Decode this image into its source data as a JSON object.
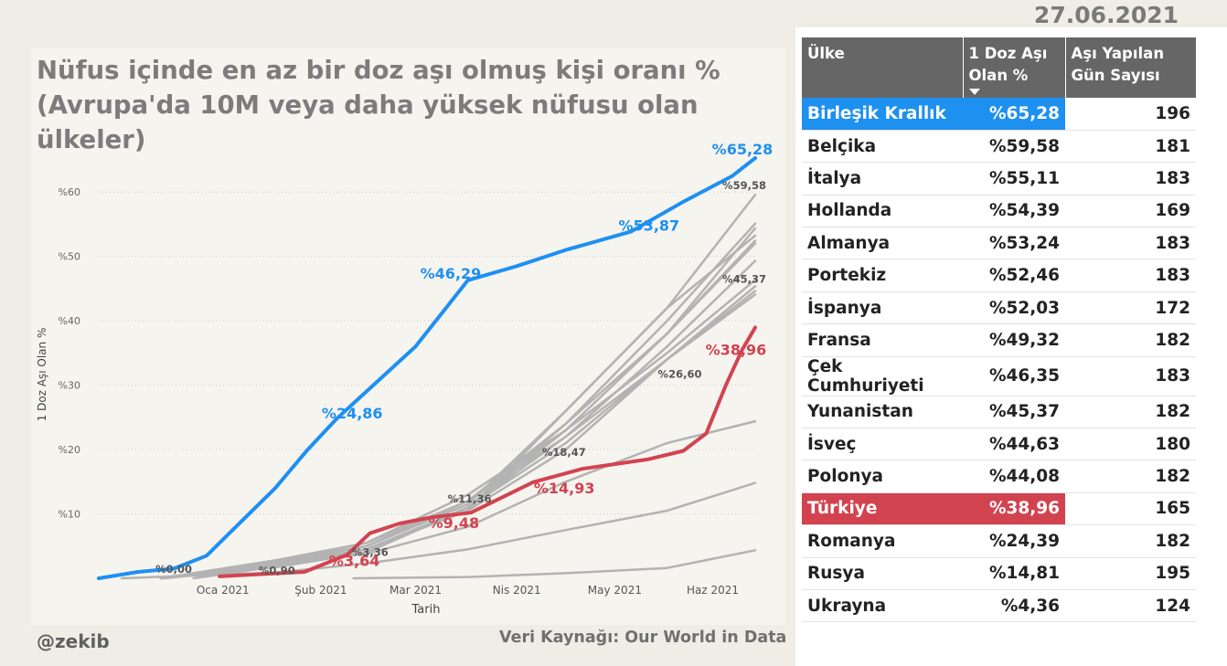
{
  "date": "27.06.2021",
  "title": "Nüfus içinde en az bir doz aşı olmuş kişi oranı % (Avrupa'da 10M veya daha yüksek nüfusu olan ülkeler)",
  "author": "@zekib",
  "source": "Veri Kaynağı: Our World in Data",
  "colors": {
    "highlight_blue": "#1e90f0",
    "highlight_red": "#d24350",
    "others_gray": "#b3b3b3",
    "header_bg": "#666666"
  },
  "chart_data": {
    "type": "line",
    "xlabel": "Tarih",
    "ylabel": "1 Doz Aşı Olan %",
    "x_ticks": [
      "Oca 2021",
      "Şub 2021",
      "Mar 2021",
      "Nis 2021",
      "May 2021",
      "Haz 2021"
    ],
    "y_ticks": [
      "%10",
      "%20",
      "%30",
      "%40",
      "%50",
      "%60"
    ],
    "ylim": [
      0,
      65
    ],
    "x_range": [
      "2020-12-08",
      "2021-06-27"
    ],
    "grid": "horizontal-dotted",
    "series": [
      {
        "name": "Birleşik Krallık",
        "color": "#1e90f0",
        "highlight": true,
        "points": [
          [
            "2020-12-08",
            0
          ],
          [
            "2020-12-20",
            1
          ],
          [
            "2020-12-31",
            1.5
          ],
          [
            "2021-01-10",
            3.5
          ],
          [
            "2021-01-20",
            8.5
          ],
          [
            "2021-01-31",
            14
          ],
          [
            "2021-02-10",
            20
          ],
          [
            "2021-02-19",
            24.86
          ],
          [
            "2021-03-01",
            29.5
          ],
          [
            "2021-03-15",
            36
          ],
          [
            "2021-03-31",
            46.29
          ],
          [
            "2021-04-15",
            48.5
          ],
          [
            "2021-04-30",
            51
          ],
          [
            "2021-05-20",
            53.87
          ],
          [
            "2021-06-05",
            58.5
          ],
          [
            "2021-06-20",
            62.5
          ],
          [
            "2021-06-27",
            65.28
          ]
        ]
      },
      {
        "name": "Türkiye",
        "color": "#d24350",
        "highlight": true,
        "points": [
          [
            "2021-01-14",
            0.3
          ],
          [
            "2021-02-09",
            1
          ],
          [
            "2021-02-22",
            3.64
          ],
          [
            "2021-03-01",
            7
          ],
          [
            "2021-03-10",
            8.5
          ],
          [
            "2021-03-20",
            9.48
          ],
          [
            "2021-04-01",
            10.2
          ],
          [
            "2021-04-20",
            14.93
          ],
          [
            "2021-05-05",
            17
          ],
          [
            "2021-05-25",
            18.47
          ],
          [
            "2021-06-05",
            19.8
          ],
          [
            "2021-06-12",
            22.5
          ],
          [
            "2021-06-18",
            30
          ],
          [
            "2021-06-23",
            35.5
          ],
          [
            "2021-06-27",
            38.96
          ]
        ]
      },
      {
        "name": "Belçika",
        "color": "#b3b3b3",
        "points": [
          [
            "2020-12-28",
            0
          ],
          [
            "2021-01-31",
            1.7
          ],
          [
            "2021-02-28",
            4.5
          ],
          [
            "2021-03-31",
            10.5
          ],
          [
            "2021-04-30",
            26
          ],
          [
            "2021-05-31",
            42
          ],
          [
            "2021-06-27",
            59.58
          ]
        ]
      },
      {
        "name": "İtalya",
        "color": "#b3b3b3",
        "points": [
          [
            "2020-12-27",
            0
          ],
          [
            "2021-01-31",
            2.5
          ],
          [
            "2021-02-28",
            5
          ],
          [
            "2021-03-31",
            12
          ],
          [
            "2021-04-30",
            24
          ],
          [
            "2021-05-31",
            40
          ],
          [
            "2021-06-27",
            55.11
          ]
        ]
      },
      {
        "name": "Hollanda",
        "color": "#b3b3b3",
        "points": [
          [
            "2021-01-06",
            0
          ],
          [
            "2021-01-31",
            1.8
          ],
          [
            "2021-02-28",
            4.5
          ],
          [
            "2021-03-31",
            11
          ],
          [
            "2021-04-30",
            24
          ],
          [
            "2021-05-31",
            38
          ],
          [
            "2021-06-27",
            54.39
          ]
        ]
      },
      {
        "name": "Almanya",
        "color": "#b3b3b3",
        "points": [
          [
            "2020-12-27",
            0
          ],
          [
            "2021-01-31",
            2.2
          ],
          [
            "2021-02-28",
            5
          ],
          [
            "2021-03-31",
            11.5
          ],
          [
            "2021-04-30",
            26
          ],
          [
            "2021-05-31",
            42
          ],
          [
            "2021-06-27",
            53.24
          ]
        ]
      },
      {
        "name": "Portekiz",
        "color": "#b3b3b3",
        "points": [
          [
            "2020-12-27",
            0
          ],
          [
            "2021-01-31",
            2.5
          ],
          [
            "2021-02-28",
            5.5
          ],
          [
            "2021-03-31",
            13
          ],
          [
            "2021-04-30",
            23
          ],
          [
            "2021-05-31",
            38
          ],
          [
            "2021-06-27",
            52.46
          ]
        ]
      },
      {
        "name": "İspanya",
        "color": "#b3b3b3",
        "points": [
          [
            "2020-12-27",
            0
          ],
          [
            "2021-01-31",
            2.8
          ],
          [
            "2021-02-28",
            5.5
          ],
          [
            "2021-03-31",
            12
          ],
          [
            "2021-04-30",
            23
          ],
          [
            "2021-05-31",
            38
          ],
          [
            "2021-06-27",
            52.03
          ]
        ]
      },
      {
        "name": "Fransa",
        "color": "#b3b3b3",
        "points": [
          [
            "2020-12-27",
            0
          ],
          [
            "2021-01-31",
            2.3
          ],
          [
            "2021-02-28",
            5
          ],
          [
            "2021-03-31",
            12
          ],
          [
            "2021-04-30",
            22
          ],
          [
            "2021-05-31",
            36
          ],
          [
            "2021-06-27",
            49.32
          ]
        ]
      },
      {
        "name": "Çek Cumhuriyeti",
        "color": "#b3b3b3",
        "points": [
          [
            "2020-12-27",
            0
          ],
          [
            "2021-01-31",
            1.9
          ],
          [
            "2021-02-28",
            4
          ],
          [
            "2021-03-31",
            11
          ],
          [
            "2021-04-30",
            23
          ],
          [
            "2021-05-31",
            35
          ],
          [
            "2021-06-27",
            46.35
          ]
        ]
      },
      {
        "name": "Yunanistan",
        "color": "#b3b3b3",
        "points": [
          [
            "2020-12-27",
            0
          ],
          [
            "2021-01-31",
            1.9
          ],
          [
            "2021-02-28",
            4.5
          ],
          [
            "2021-03-31",
            10.5
          ],
          [
            "2021-04-30",
            20
          ],
          [
            "2021-05-31",
            34
          ],
          [
            "2021-06-27",
            45.37
          ]
        ]
      },
      {
        "name": "İsveç",
        "color": "#b3b3b3",
        "points": [
          [
            "2020-12-27",
            0
          ],
          [
            "2021-01-31",
            1.7
          ],
          [
            "2021-02-28",
            4
          ],
          [
            "2021-03-31",
            11
          ],
          [
            "2021-04-30",
            22
          ],
          [
            "2021-05-31",
            34
          ],
          [
            "2021-06-27",
            44.63
          ]
        ]
      },
      {
        "name": "Polonya",
        "color": "#b3b3b3",
        "points": [
          [
            "2020-12-27",
            0
          ],
          [
            "2021-01-31",
            2.2
          ],
          [
            "2021-02-28",
            4.5
          ],
          [
            "2021-03-31",
            11
          ],
          [
            "2021-04-30",
            21
          ],
          [
            "2021-05-31",
            34
          ],
          [
            "2021-06-27",
            44.08
          ]
        ]
      },
      {
        "name": "Romanya",
        "color": "#b3b3b3",
        "points": [
          [
            "2020-12-27",
            0
          ],
          [
            "2021-01-31",
            2.3
          ],
          [
            "2021-02-28",
            3.8
          ],
          [
            "2021-03-31",
            8
          ],
          [
            "2021-04-30",
            15
          ],
          [
            "2021-05-31",
            21
          ],
          [
            "2021-06-27",
            24.39
          ]
        ]
      },
      {
        "name": "Rusya",
        "color": "#b3b3b3",
        "points": [
          [
            "2020-12-15",
            0
          ],
          [
            "2021-01-31",
            0.9
          ],
          [
            "2021-02-28",
            2.3
          ],
          [
            "2021-03-31",
            4.5
          ],
          [
            "2021-04-30",
            7.5
          ],
          [
            "2021-05-31",
            10.5
          ],
          [
            "2021-06-27",
            14.81
          ]
        ]
      },
      {
        "name": "Ukrayna",
        "color": "#b3b3b3",
        "points": [
          [
            "2021-02-24",
            0
          ],
          [
            "2021-03-31",
            0.2
          ],
          [
            "2021-04-30",
            0.8
          ],
          [
            "2021-05-31",
            1.6
          ],
          [
            "2021-06-27",
            4.36
          ]
        ]
      }
    ],
    "annotations": [
      {
        "text": "%0,00",
        "date": "2020-12-31",
        "value": 0,
        "style": "gray-small"
      },
      {
        "text": "%0,90",
        "date": "2021-01-31",
        "value": 0.9,
        "style": "gray-small"
      },
      {
        "text": "%3,36",
        "date": "2021-02-28",
        "value": 3.36,
        "style": "gray-small"
      },
      {
        "text": "%11,36",
        "date": "2021-03-31",
        "value": 11.36,
        "style": "gray-small"
      },
      {
        "text": "%18,47",
        "date": "2021-04-30",
        "value": 18.47,
        "style": "gray-small"
      },
      {
        "text": "%26,60",
        "date": "2021-05-31",
        "value": 26.6,
        "style": "gray-small"
      },
      {
        "text": "%45,37",
        "date": "2021-06-27",
        "value": 45.37,
        "style": "gray-small"
      },
      {
        "text": "%59,58",
        "date": "2021-06-27",
        "value": 59.58,
        "style": "gray-small"
      },
      {
        "text": "%24,86",
        "date": "2021-02-28",
        "value": 24.86,
        "style": "blue"
      },
      {
        "text": "%46,29",
        "date": "2021-03-31",
        "value": 46.29,
        "style": "blue"
      },
      {
        "text": "%53,87",
        "date": "2021-05-31",
        "value": 53.87,
        "style": "blue"
      },
      {
        "text": "%65,28",
        "date": "2021-06-27",
        "value": 65.28,
        "style": "blue"
      },
      {
        "text": "%3,64",
        "date": "2021-02-28",
        "value": 3.64,
        "style": "red"
      },
      {
        "text": "%9,48",
        "date": "2021-03-31",
        "value": 9.48,
        "style": "red"
      },
      {
        "text": "%14,93",
        "date": "2021-04-30",
        "value": 14.93,
        "style": "red"
      },
      {
        "text": "%38,96",
        "date": "2021-06-27",
        "value": 38.96,
        "style": "red"
      }
    ]
  },
  "table": {
    "headers": [
      "Ülke",
      "1 Doz Aşı Olan %",
      "Aşı Yapılan Gün Sayısı"
    ],
    "sort_icon": "sort-descending-icon",
    "rows": [
      {
        "country": "Birleşik Krallık",
        "pct": "%65,28",
        "days": "196",
        "highlight": "blue"
      },
      {
        "country": "Belçika",
        "pct": "%59,58",
        "days": "181"
      },
      {
        "country": "İtalya",
        "pct": "%55,11",
        "days": "183"
      },
      {
        "country": "Hollanda",
        "pct": "%54,39",
        "days": "169"
      },
      {
        "country": "Almanya",
        "pct": "%53,24",
        "days": "183"
      },
      {
        "country": "Portekiz",
        "pct": "%52,46",
        "days": "183"
      },
      {
        "country": "İspanya",
        "pct": "%52,03",
        "days": "172"
      },
      {
        "country": "Fransa",
        "pct": "%49,32",
        "days": "182"
      },
      {
        "country": "Çek Cumhuriyeti",
        "pct": "%46,35",
        "days": "183"
      },
      {
        "country": "Yunanistan",
        "pct": "%45,37",
        "days": "182"
      },
      {
        "country": "İsveç",
        "pct": "%44,63",
        "days": "180"
      },
      {
        "country": "Polonya",
        "pct": "%44,08",
        "days": "182"
      },
      {
        "country": "Türkiye",
        "pct": "%38,96",
        "days": "165",
        "highlight": "red"
      },
      {
        "country": "Romanya",
        "pct": "%24,39",
        "days": "182"
      },
      {
        "country": "Rusya",
        "pct": "%14,81",
        "days": "195"
      },
      {
        "country": "Ukrayna",
        "pct": "%4,36",
        "days": "124"
      }
    ]
  }
}
